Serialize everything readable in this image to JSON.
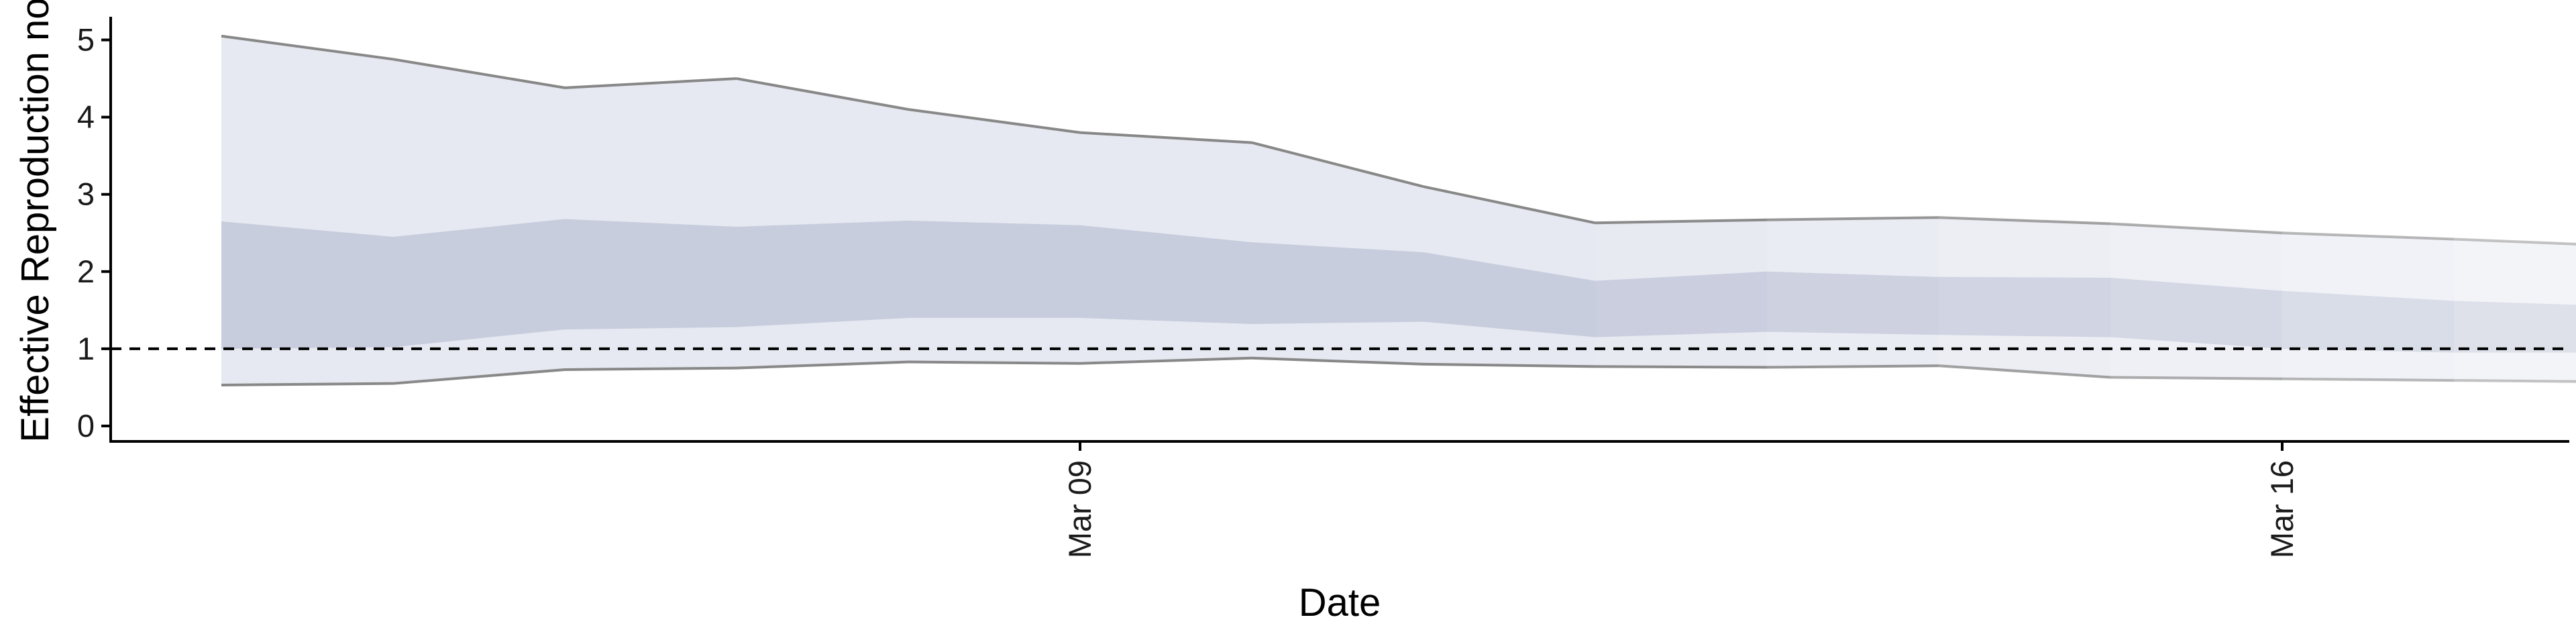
{
  "chart_data": {
    "type": "area",
    "title": "",
    "xlabel": "Date",
    "ylabel": "Effective Reproduction no.",
    "x": [
      "Mar 04",
      "Mar 05",
      "Mar 06",
      "Mar 07",
      "Mar 08",
      "Mar 09",
      "Mar 10",
      "Mar 11",
      "Mar 12",
      "Mar 13",
      "Mar 14",
      "Mar 15",
      "Mar 16",
      "Mar 17",
      "Mar 18"
    ],
    "x_ticks": [
      "Mar 09",
      "Mar 16"
    ],
    "y_ticks": [
      "0",
      "1",
      "2",
      "3",
      "4",
      "5"
    ],
    "ylim": [
      -0.2,
      5.3
    ],
    "reference_line": {
      "y": 1,
      "style": "dashed"
    },
    "series": [
      {
        "outer_lower": [
          0.53,
          0.55,
          0.73,
          0.75,
          0.83,
          0.81,
          0.88,
          0.8,
          0.77,
          0.76,
          0.78,
          0.63,
          0.61,
          0.59,
          0.57
        ],
        "outer_upper": [
          5.05,
          4.75,
          4.38,
          4.5,
          4.1,
          3.8,
          3.67,
          3.1,
          2.63,
          2.67,
          2.7,
          2.62,
          2.5,
          2.42,
          2.33
        ],
        "inner_lower": [
          1.0,
          1.02,
          1.25,
          1.28,
          1.4,
          1.4,
          1.32,
          1.35,
          1.15,
          1.22,
          1.18,
          1.15,
          1.0,
          0.95,
          0.95
        ],
        "inner_upper": [
          2.65,
          2.45,
          2.68,
          2.58,
          2.66,
          2.6,
          2.38,
          2.25,
          1.88,
          2.0,
          1.93,
          1.92,
          1.75,
          1.62,
          1.55
        ]
      }
    ],
    "colors": {
      "outer_band": "#e6e9f1",
      "inner_band": "#c8cddd",
      "bound_line": "#888888",
      "axis": "#000000",
      "reference_line": "#000000"
    },
    "grid": false
  }
}
